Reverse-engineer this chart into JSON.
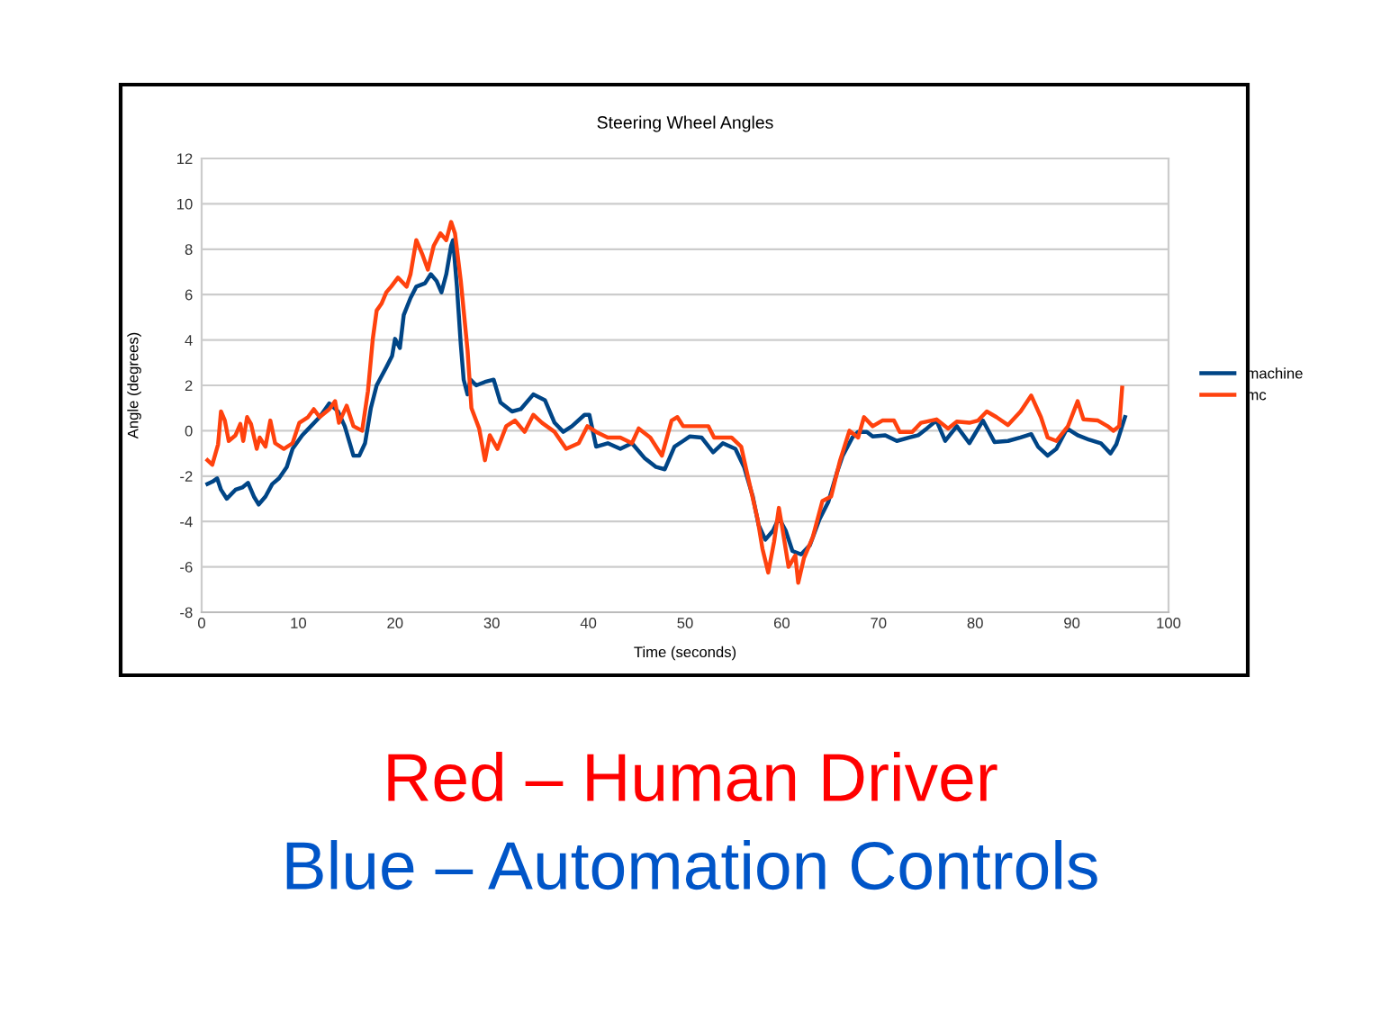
{
  "chart_data": {
    "type": "line",
    "title": "Steering Wheel Angles",
    "xlabel": "Time (seconds)",
    "ylabel": "Angle (degrees)",
    "xlim": [
      0,
      100
    ],
    "xticks": [
      0,
      10,
      20,
      30,
      40,
      50,
      60,
      70,
      80,
      90,
      100
    ],
    "ylim": [
      -8,
      12
    ],
    "yticks": [
      -8,
      -6,
      -4,
      -2,
      0,
      2,
      4,
      6,
      8,
      10,
      12
    ],
    "grid": "y",
    "legend": "right",
    "marker": "none",
    "line_style": "solid",
    "annotations": [
      "Red – Human Driver",
      "Blue – Automation Controls"
    ],
    "series": [
      {
        "name": "machine",
        "color": "#004586",
        "x": [
          0.6,
          1.1,
          1.6,
          2.0,
          2.6,
          3.5,
          4.2,
          4.8,
          5.4,
          5.9,
          6.6,
          7.3,
          8.0,
          8.8,
          9.4,
          10.4,
          11.3,
          12.2,
          13.2,
          14.1,
          14.8,
          15.7,
          16.3,
          16.9,
          17.5,
          18.1,
          19.1,
          19.7,
          20.0,
          20.5,
          20.9,
          21.6,
          22.2,
          23.1,
          23.7,
          24.3,
          24.8,
          25.3,
          25.8,
          26.0,
          26.4,
          26.8,
          27.1,
          27.5,
          27.8,
          28.4,
          29.3,
          30.2,
          30.9,
          32.1,
          33.0,
          34.3,
          35.5,
          36.5,
          37.4,
          38.3,
          39.6,
          40.1,
          40.8,
          42.0,
          43.3,
          44.5,
          45.8,
          47.0,
          47.9,
          48.9,
          49.8,
          50.5,
          51.7,
          52.9,
          53.9,
          55.2,
          56.1,
          57.0,
          57.6,
          58.3,
          59.1,
          59.7,
          60.4,
          61.1,
          62.0,
          62.9,
          63.9,
          64.8,
          65.7,
          66.3,
          67.3,
          67.9,
          68.8,
          69.4,
          70.7,
          71.9,
          73.2,
          74.1,
          75.0,
          76.0,
          76.9,
          78.1,
          79.4,
          80.8,
          82.0,
          83.4,
          84.7,
          85.8,
          86.5,
          87.5,
          88.4,
          89.5,
          90.6,
          91.8,
          93.0,
          94.0,
          94.6,
          95.5
        ],
        "values": [
          -2.35,
          -2.25,
          -2.1,
          -2.6,
          -3.0,
          -2.6,
          -2.5,
          -2.3,
          -2.9,
          -3.25,
          -2.9,
          -2.35,
          -2.1,
          -1.6,
          -0.8,
          -0.2,
          0.2,
          0.6,
          1.2,
          0.85,
          0.2,
          -1.1,
          -1.1,
          -0.55,
          1.0,
          2.0,
          2.8,
          3.3,
          4.05,
          3.65,
          5.1,
          5.85,
          6.35,
          6.5,
          6.9,
          6.6,
          6.1,
          6.9,
          8.15,
          8.4,
          6.35,
          3.8,
          2.25,
          1.6,
          2.25,
          2.0,
          2.15,
          2.25,
          1.25,
          0.85,
          0.95,
          1.6,
          1.35,
          0.35,
          -0.05,
          0.2,
          0.7,
          0.7,
          -0.7,
          -0.55,
          -0.8,
          -0.55,
          -1.2,
          -1.6,
          -1.7,
          -0.7,
          -0.45,
          -0.25,
          -0.3,
          -0.95,
          -0.55,
          -0.8,
          -1.6,
          -2.9,
          -4.15,
          -4.8,
          -4.4,
          -3.85,
          -4.4,
          -5.3,
          -5.45,
          -5.05,
          -3.9,
          -3.15,
          -1.85,
          -1.1,
          -0.3,
          -0.05,
          -0.05,
          -0.25,
          -0.2,
          -0.45,
          -0.3,
          -0.2,
          0.1,
          0.45,
          -0.45,
          0.2,
          -0.55,
          0.45,
          -0.5,
          -0.45,
          -0.3,
          -0.15,
          -0.7,
          -1.1,
          -0.8,
          0.1,
          -0.2,
          -0.4,
          -0.55,
          -1.0,
          -0.6,
          0.6
        ]
      },
      {
        "name": "mc",
        "color": "#ff420e",
        "x": [
          0.6,
          1.1,
          1.7,
          2.0,
          2.4,
          2.8,
          3.5,
          4.0,
          4.3,
          4.7,
          5.1,
          5.7,
          6.0,
          6.6,
          7.1,
          7.6,
          8.5,
          9.4,
          10.1,
          11.0,
          11.6,
          12.2,
          13.2,
          13.8,
          14.2,
          15.0,
          15.7,
          16.6,
          17.2,
          17.7,
          18.1,
          18.6,
          19.1,
          19.6,
          20.3,
          21.2,
          21.6,
          22.2,
          22.8,
          23.4,
          24.0,
          24.7,
          25.3,
          25.8,
          26.2,
          26.8,
          27.5,
          27.9,
          28.7,
          29.3,
          29.8,
          30.6,
          31.5,
          32.4,
          33.4,
          34.3,
          35.2,
          36.5,
          37.7,
          39.0,
          39.9,
          40.8,
          42.0,
          43.3,
          44.5,
          45.2,
          46.4,
          47.6,
          48.6,
          49.2,
          49.8,
          51.4,
          52.4,
          53.0,
          54.8,
          55.8,
          56.4,
          57.5,
          58.0,
          58.6,
          59.2,
          59.7,
          60.1,
          60.7,
          61.4,
          61.7,
          62.3,
          63.2,
          64.2,
          65.1,
          66.0,
          67.0,
          67.9,
          68.5,
          69.4,
          70.4,
          71.6,
          72.2,
          73.5,
          74.4,
          76.0,
          77.2,
          78.1,
          79.4,
          80.3,
          81.2,
          82.2,
          83.4,
          84.7,
          85.8,
          86.8,
          87.5,
          88.4,
          89.6,
          90.6,
          91.2,
          92.7,
          93.7,
          94.3,
          94.9,
          95.2
        ],
        "values": [
          -1.3,
          -1.5,
          -0.6,
          0.85,
          0.45,
          -0.45,
          -0.2,
          0.3,
          -0.45,
          0.6,
          0.3,
          -0.8,
          -0.3,
          -0.7,
          0.45,
          -0.55,
          -0.8,
          -0.55,
          0.35,
          0.6,
          0.95,
          0.6,
          0.95,
          1.3,
          0.35,
          1.1,
          0.2,
          0,
          1.75,
          4.05,
          5.3,
          5.6,
          6.1,
          6.35,
          6.75,
          6.35,
          6.9,
          8.4,
          7.8,
          7.1,
          8.15,
          8.7,
          8.4,
          9.2,
          8.7,
          6.6,
          3.55,
          1.0,
          0.1,
          -1.3,
          -0.2,
          -0.8,
          0.2,
          0.45,
          -0.05,
          0.7,
          0.35,
          -0.05,
          -0.8,
          -0.55,
          0.2,
          -0.05,
          -0.3,
          -0.3,
          -0.55,
          0.1,
          -0.3,
          -1.1,
          0.45,
          0.6,
          0.2,
          0.2,
          0.2,
          -0.3,
          -0.3,
          -0.7,
          -1.85,
          -3.9,
          -5.2,
          -6.25,
          -4.9,
          -3.4,
          -4.4,
          -6.0,
          -5.5,
          -6.7,
          -5.6,
          -4.7,
          -3.1,
          -2.9,
          -1.35,
          0,
          -0.3,
          0.6,
          0.2,
          0.45,
          0.45,
          -0.05,
          -0.05,
          0.35,
          0.5,
          0.1,
          0.4,
          0.35,
          0.45,
          0.85,
          0.6,
          0.25,
          0.85,
          1.55,
          0.6,
          -0.3,
          -0.45,
          0.2,
          1.3,
          0.5,
          0.45,
          0.2,
          0,
          0.2,
          1.9
        ]
      }
    ]
  }
}
